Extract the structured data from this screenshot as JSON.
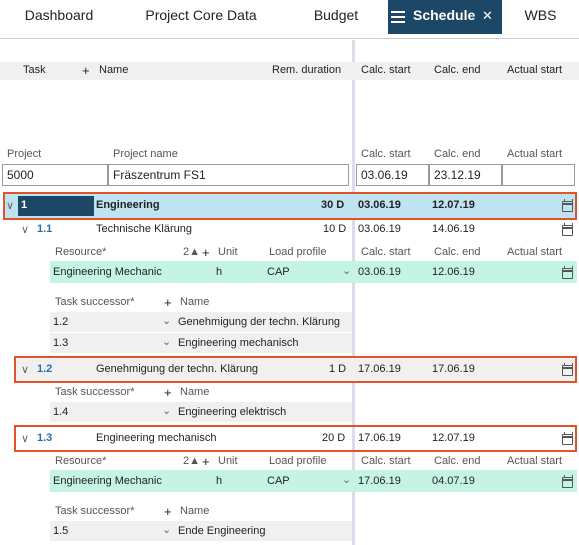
{
  "tabs": [
    {
      "label": "Dashboard"
    },
    {
      "label": "Project Core Data"
    },
    {
      "label": "Budget"
    },
    {
      "label": "Schedule",
      "active": true
    },
    {
      "label": "WBS"
    }
  ],
  "columns": {
    "task": "Task",
    "add": "+",
    "name": "Name",
    "rem_duration": "Rem. duration",
    "calc_start": "Calc. start",
    "calc_end": "Calc. end",
    "actual_start": "Actual start"
  },
  "project": {
    "label_project": "Project",
    "label_name": "Project name",
    "id": "5000",
    "name": "Fräszentrum FS1",
    "calc_start_label": "Calc. start",
    "calc_end_label": "Calc. end",
    "actual_start_label": "Actual start",
    "calc_start": "03.06.19",
    "calc_end": "23.12.19"
  },
  "rows": {
    "r1": {
      "num": "1",
      "name": "Engineering",
      "duration": "30 D",
      "start": "03.06.19",
      "end": "12.07.19"
    },
    "r11": {
      "num": "1.1",
      "name": "Technische Klärung",
      "duration": "10 D",
      "start": "03.06.19",
      "end": "14.06.19"
    },
    "r12": {
      "num": "1.2",
      "name": "Genehmigung der techn. Klärung",
      "duration": "1 D",
      "start": "17.06.19",
      "end": "17.06.19"
    },
    "r13": {
      "num": "1.3",
      "name": "Engineering mechanisch",
      "duration": "20 D",
      "start": "17.06.19",
      "end": "12.07.19"
    }
  },
  "resource_header": {
    "resource": "Resource*",
    "sort": "2▲",
    "add": "+",
    "unit": "Unit",
    "load_profile": "Load profile",
    "calc_start": "Calc. start",
    "calc_end": "Calc. end",
    "actual_start": "Actual start"
  },
  "resource_11": {
    "name": "Engineering Mechanic",
    "unit": "h",
    "profile": "CAP",
    "start": "03.06.19",
    "end": "12.06.19"
  },
  "resource_13": {
    "name": "Engineering Mechanic",
    "unit": "h",
    "profile": "CAP",
    "start": "17.06.19",
    "end": "04.07.19"
  },
  "successor_header": {
    "label": "Task successor*",
    "add": "+",
    "name": "Name"
  },
  "successors_11": [
    {
      "id": "1.2",
      "name": "Genehmigung der techn. Klärung"
    },
    {
      "id": "1.3",
      "name": "Engineering mechanisch"
    }
  ],
  "successors_12": [
    {
      "id": "1.4",
      "name": "Engineering elektrisch"
    }
  ],
  "successors_13": [
    {
      "id": "1.5",
      "name": "Ende Engineering"
    }
  ],
  "glyphs": {
    "caret_down": "∨",
    "close": "✕",
    "select_caret": "⌄"
  },
  "colors": {
    "tab_active": "#1c4766",
    "row_selected": "#bfe3f1",
    "highlight_border": "#e0542a",
    "resource_row": "#c6f4e2",
    "item_number": "#2a6fa8"
  }
}
